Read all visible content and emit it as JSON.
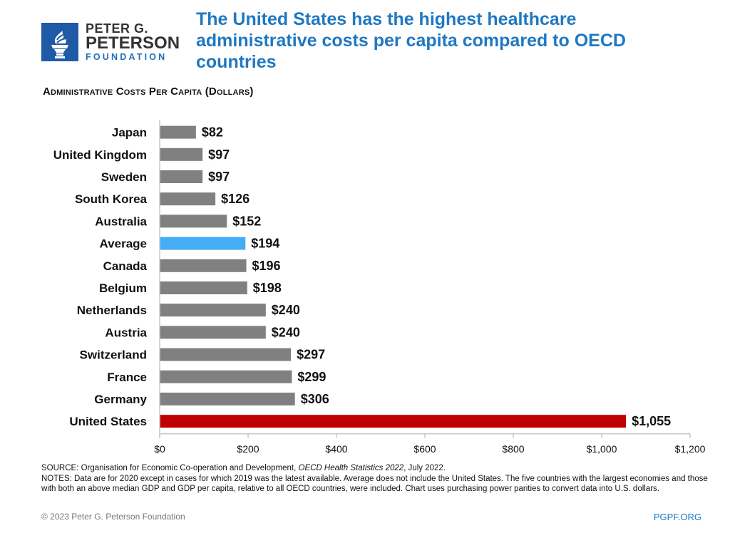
{
  "logo": {
    "line1": "PETER G.",
    "line2": "PETERSON",
    "line3": "FOUNDATION",
    "icon": "torch-icon",
    "color": "#1f5aa6"
  },
  "title": "The United States has the highest healthcare administrative costs per capita compared to OECD countries",
  "footer": {
    "source_prefix": "SOURCE: Organisation for Economic Co-operation and Development, ",
    "source_italic": "OECD Health Statistics 2022",
    "source_suffix": ", July 2022.",
    "notes": "NOTES: Data are for 2020 except in cases for which 2019 was the latest available. Average does not include the United States. The five countries with the largest economies and those with both an above median GDP and GDP per capita, relative to all OECD countries, were included. Chart uses purchasing power parities to convert data into U.S. dollars.",
    "copyright": "© 2023 Peter G. Peterson Foundation",
    "site": "PGPF.ORG"
  },
  "chart_data": {
    "type": "bar",
    "orientation": "horizontal",
    "title": "Administrative Costs Per Capita (Dollars)",
    "xlabel": "",
    "ylabel": "",
    "categories": [
      "Japan",
      "United Kingdom",
      "Sweden",
      "South Korea",
      "Australia",
      "Average",
      "Canada",
      "Belgium",
      "Netherlands",
      "Austria",
      "Switzerland",
      "France",
      "Germany",
      "United States"
    ],
    "values": [
      82,
      97,
      97,
      126,
      152,
      194,
      196,
      198,
      240,
      240,
      297,
      299,
      306,
      1055
    ],
    "data_labels": [
      "$82",
      "$97",
      "$97",
      "$126",
      "$152",
      "$194",
      "$196",
      "$198",
      "$240",
      "$240",
      "$297",
      "$299",
      "$306",
      "$1,055"
    ],
    "colors": [
      "#808080",
      "#808080",
      "#808080",
      "#808080",
      "#808080",
      "#45acf5",
      "#808080",
      "#808080",
      "#808080",
      "#808080",
      "#808080",
      "#808080",
      "#808080",
      "#c00000"
    ],
    "xlim": [
      0,
      1200
    ],
    "xticks": [
      0,
      200,
      400,
      600,
      800,
      1000,
      1200
    ],
    "xtick_labels": [
      "$0",
      "$200",
      "$400",
      "$600",
      "$800",
      "$1,000",
      "$1,200"
    ],
    "grid": false,
    "legend": "none"
  }
}
